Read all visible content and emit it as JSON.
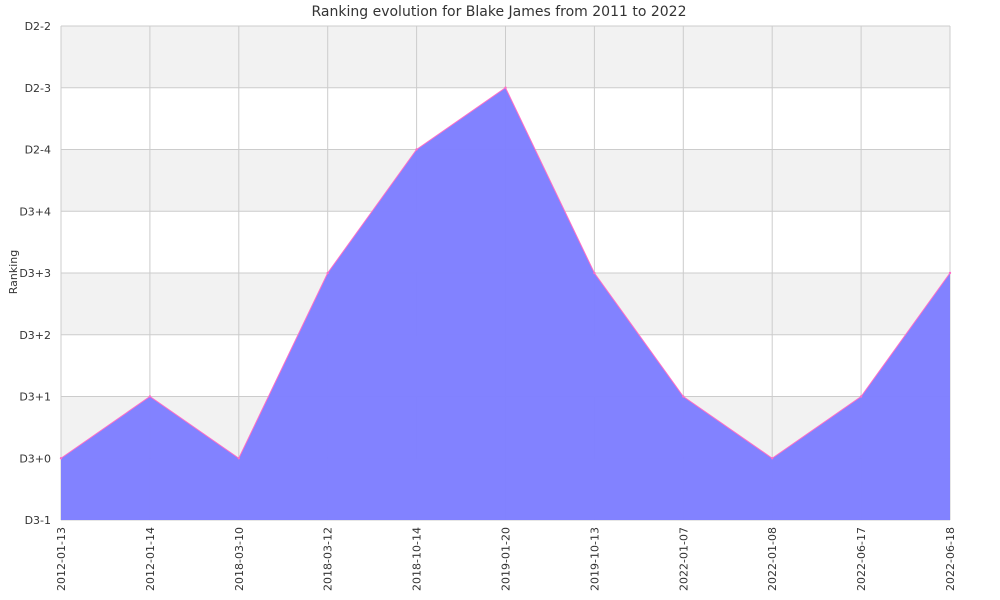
{
  "chart_data": {
    "type": "area",
    "title": "Ranking evolution for Blake James from 2011 to 2022",
    "xlabel": "",
    "ylabel": "Ranking",
    "categories": [
      "2012-01-13",
      "2012-01-14",
      "2018-03-10",
      "2018-03-12",
      "2018-10-14",
      "2019-01-20",
      "2019-10-13",
      "2022-01-07",
      "2022-01-08",
      "2022-06-17",
      "2022-06-18"
    ],
    "y_levels": [
      "D3-1",
      "D3+0",
      "D3+1",
      "D3+2",
      "D3+3",
      "D3+4",
      "D2-4",
      "D2-3",
      "D2-2"
    ],
    "series": [
      {
        "values": [
          "D3+0",
          "D3+1",
          "D3+0",
          "D3+3",
          "D2-4",
          "D2-3",
          "D3+3",
          "D3+1",
          "D3+0",
          "D3+1",
          "D3+3"
        ]
      }
    ],
    "grid": true,
    "legend": "none",
    "colors": {
      "fill": "#7f7fff",
      "line": "#ff6ec7",
      "band": "#f2f2f2",
      "grid": "#cccccc"
    }
  }
}
